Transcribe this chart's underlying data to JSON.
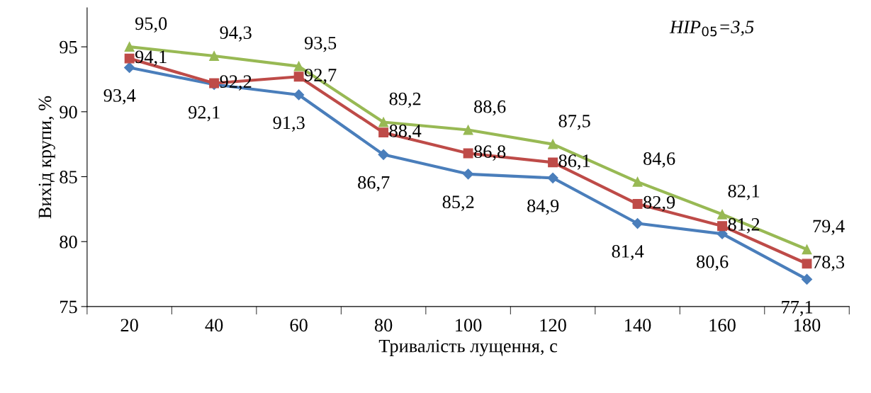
{
  "chart_data": {
    "type": "line",
    "xlabel": "Тривалість лущення, с",
    "ylabel": "Вихід крупи, %",
    "categories": [
      "20",
      "40",
      "60",
      "80",
      "100",
      "120",
      "140",
      "160",
      "180"
    ],
    "series": [
      {
        "color": "#4a7ebb",
        "marker": "diamond",
        "values": [
          93.4,
          92.1,
          91.3,
          86.7,
          85.2,
          84.9,
          81.4,
          80.6,
          77.1
        ],
        "value_labels": [
          "93,4",
          "92,1",
          "91,3",
          "86,7",
          "85,2",
          "84,9",
          "81,4",
          "80,6",
          "77,1"
        ]
      },
      {
        "color": "#be4b48",
        "marker": "square",
        "values": [
          94.1,
          92.2,
          92.7,
          88.4,
          86.8,
          86.1,
          82.9,
          81.2,
          78.3
        ],
        "value_labels": [
          "94,1",
          "92,2",
          "92,7",
          "88,4",
          "86,8",
          "86,1",
          "82,9",
          "81,2",
          "78,3"
        ]
      },
      {
        "color": "#98b954",
        "marker": "triangle",
        "values": [
          95.0,
          94.3,
          93.5,
          89.2,
          88.6,
          87.5,
          84.6,
          82.1,
          79.4
        ],
        "value_labels": [
          "95,0",
          "94,3",
          "93,5",
          "89,2",
          "88,6",
          "87,5",
          "84,6",
          "82,1",
          "79,4"
        ]
      }
    ],
    "ylim": [
      75,
      98
    ],
    "yticks": [
      75,
      80,
      85,
      90,
      95
    ],
    "grid": false,
    "legend": false,
    "annotations": [
      "HIP$_{05}$=3,5"
    ]
  }
}
